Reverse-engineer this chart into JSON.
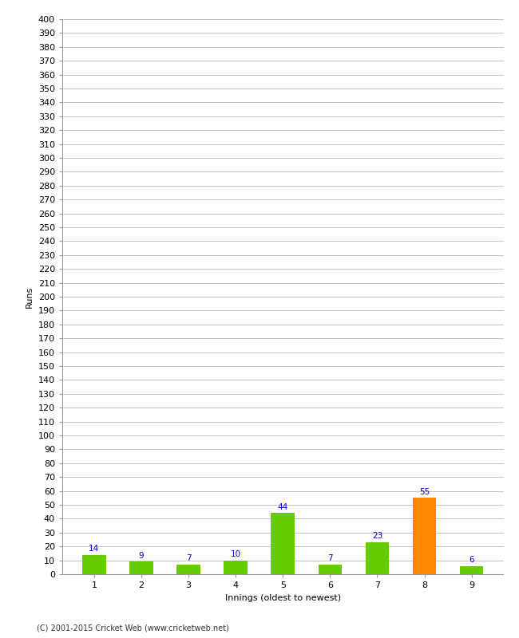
{
  "categories": [
    1,
    2,
    3,
    4,
    5,
    6,
    7,
    8,
    9
  ],
  "values": [
    14,
    9,
    7,
    10,
    44,
    7,
    23,
    55,
    6
  ],
  "bar_colors": [
    "#66cc00",
    "#66cc00",
    "#66cc00",
    "#66cc00",
    "#66cc00",
    "#66cc00",
    "#66cc00",
    "#ff8800",
    "#66cc00"
  ],
  "xlabel": "Innings (oldest to newest)",
  "ylabel": "Runs",
  "ylim": [
    0,
    400
  ],
  "ytick_step": 10,
  "footer": "(C) 2001-2015 Cricket Web (www.cricketweb.net)",
  "label_color": "#0000cc",
  "label_fontsize": 7.5,
  "axis_fontsize": 8,
  "background_color": "#ffffff",
  "grid_color": "#aaaaaa",
  "bar_width": 0.5
}
